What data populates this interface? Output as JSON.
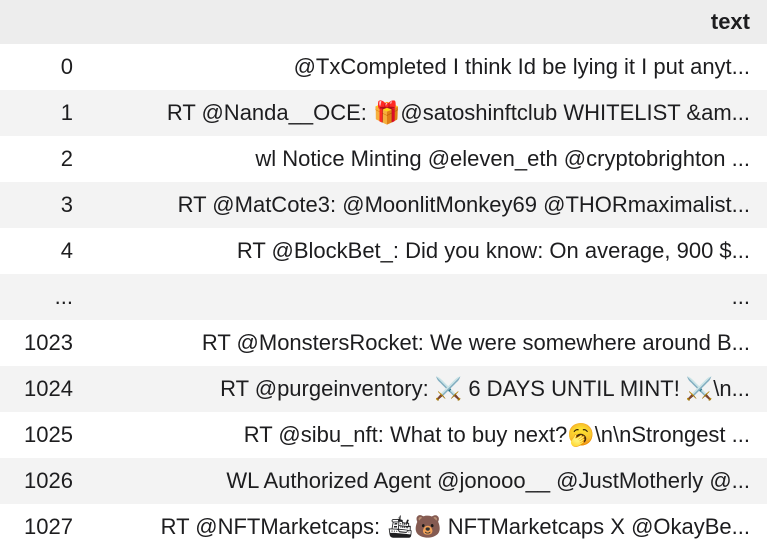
{
  "table": {
    "columns": [
      "",
      "text"
    ],
    "rows": [
      {
        "index": "0",
        "text": "@TxCompleted I think Id be lying it I put anyt..."
      },
      {
        "index": "1",
        "text": "RT @Nanda__OCE: 🎁@satoshinftclub WHITELIST &am..."
      },
      {
        "index": "2",
        "text": "wl Notice Minting @eleven_eth @cryptobrighton ..."
      },
      {
        "index": "3",
        "text": "RT @MatCote3: @MoonlitMonkey69 @THORmaximalist..."
      },
      {
        "index": "4",
        "text": "RT @BlockBet_: Did you know: On average, 900 $..."
      },
      {
        "index": "...",
        "text": "..."
      },
      {
        "index": "1023",
        "text": "RT @MonstersRocket: We were somewhere around B..."
      },
      {
        "index": "1024",
        "text": "RT @purgeinventory: ⚔️ 6 DAYS UNTIL MINT! ⚔️\\n..."
      },
      {
        "index": "1025",
        "text": "RT @sibu_nft: What to buy next?🥱\\n\\nStrongest ..."
      },
      {
        "index": "1026",
        "text": "WL Authorized Agent @jonooo__ @JustMotherly @..."
      },
      {
        "index": "1027",
        "text": "RT @NFTMarketcaps: 🛳🐻 NFTMarketcaps X @OkayBe..."
      }
    ]
  }
}
